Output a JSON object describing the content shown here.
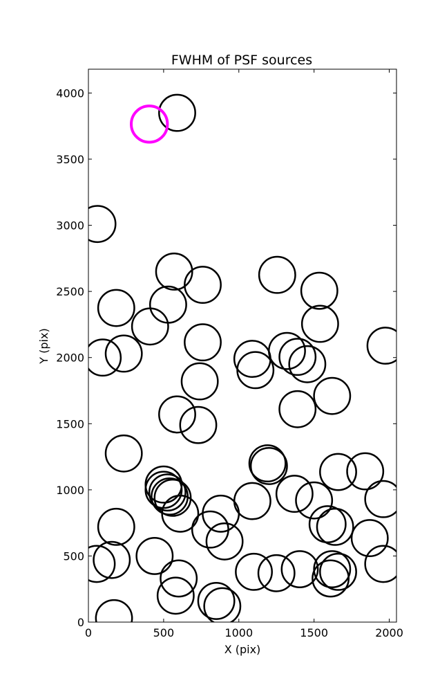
{
  "chart_data": {
    "type": "scatter",
    "title": "FWHM of PSF sources",
    "xlabel": "X (pix)",
    "ylabel": "Y (pix)",
    "xlim": [
      0,
      2048
    ],
    "ylim": [
      0,
      4180
    ],
    "xticks": [
      0,
      500,
      1000,
      1500,
      2000
    ],
    "yticks": [
      0,
      500,
      1000,
      1500,
      2000,
      2500,
      3000,
      3500,
      4000
    ],
    "grid": false,
    "radius_data_units": 137,
    "series": [
      {
        "color": "#000000",
        "points": [
          [
            590,
            3850
          ],
          [
            60,
            3010
          ],
          [
            570,
            2650
          ],
          [
            760,
            2550
          ],
          [
            1255,
            2625
          ],
          [
            1535,
            2505
          ],
          [
            185,
            2375
          ],
          [
            530,
            2400
          ],
          [
            410,
            2235
          ],
          [
            1540,
            2255
          ],
          [
            95,
            2000
          ],
          [
            235,
            2030
          ],
          [
            760,
            2115
          ],
          [
            1090,
            1990
          ],
          [
            1110,
            1905
          ],
          [
            1320,
            2050
          ],
          [
            1390,
            2005
          ],
          [
            1455,
            1950
          ],
          [
            1975,
            2090
          ],
          [
            740,
            1820
          ],
          [
            1620,
            1710
          ],
          [
            590,
            1570
          ],
          [
            730,
            1490
          ],
          [
            1390,
            1610
          ],
          [
            235,
            1275
          ],
          [
            1190,
            1200
          ],
          [
            1200,
            1180
          ],
          [
            1660,
            1135
          ],
          [
            1840,
            1140
          ],
          [
            500,
            1040
          ],
          [
            500,
            1000
          ],
          [
            525,
            980
          ],
          [
            540,
            950
          ],
          [
            560,
            940
          ],
          [
            1370,
            970
          ],
          [
            1500,
            920
          ],
          [
            1960,
            930
          ],
          [
            1090,
            915
          ],
          [
            880,
            820
          ],
          [
            610,
            820
          ],
          [
            810,
            700
          ],
          [
            905,
            610
          ],
          [
            185,
            720
          ],
          [
            1590,
            740
          ],
          [
            1640,
            720
          ],
          [
            1870,
            635
          ],
          [
            155,
            470
          ],
          [
            55,
            440
          ],
          [
            440,
            500
          ],
          [
            600,
            330
          ],
          [
            580,
            200
          ],
          [
            850,
            160
          ],
          [
            890,
            120
          ],
          [
            1100,
            380
          ],
          [
            1250,
            370
          ],
          [
            1405,
            400
          ],
          [
            1620,
            400
          ],
          [
            1660,
            380
          ],
          [
            1610,
            330
          ],
          [
            1960,
            440
          ],
          [
            170,
            30
          ]
        ]
      },
      {
        "color": "#ff00ff",
        "points": [
          [
            405,
            3765
          ]
        ]
      }
    ]
  }
}
